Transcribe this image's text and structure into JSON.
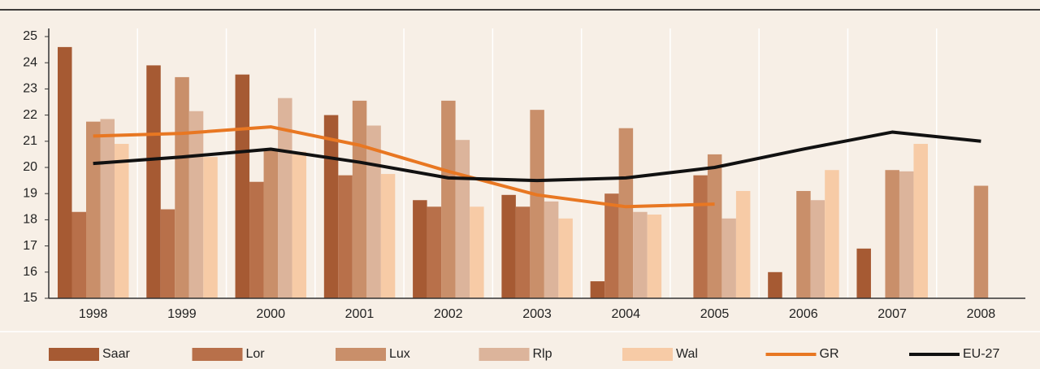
{
  "chart_data": {
    "type": "bar",
    "categories": [
      "1998",
      "1999",
      "2000",
      "2001",
      "2002",
      "2003",
      "2004",
      "2005",
      "2006",
      "2007",
      "2008"
    ],
    "ylim": [
      15,
      25
    ],
    "yticks": [
      15,
      16,
      17,
      18,
      19,
      20,
      21,
      22,
      23,
      24,
      25
    ],
    "series": [
      {
        "name": "Saar",
        "type": "bar",
        "color": "#a65a33",
        "values": [
          24.6,
          23.9,
          23.55,
          22.0,
          18.75,
          18.95,
          15.65,
          null,
          16.0,
          16.9,
          null
        ]
      },
      {
        "name": "Lor",
        "type": "bar",
        "color": "#b8704a",
        "values": [
          18.3,
          18.4,
          19.45,
          19.7,
          18.5,
          18.5,
          19.0,
          19.7,
          null,
          null,
          null
        ]
      },
      {
        "name": "Lux",
        "type": "bar",
        "color": "#c98f6a",
        "values": [
          21.75,
          23.45,
          20.7,
          22.55,
          22.55,
          22.2,
          21.5,
          20.5,
          19.1,
          19.9,
          19.3
        ]
      },
      {
        "name": "Rlp",
        "type": "bar",
        "color": "#dcb49b",
        "values": [
          21.85,
          22.15,
          22.65,
          21.6,
          21.05,
          18.7,
          18.3,
          18.05,
          18.75,
          19.85,
          null
        ]
      },
      {
        "name": "Wal",
        "type": "bar",
        "color": "#f7cba6",
        "values": [
          20.9,
          20.4,
          20.6,
          19.75,
          18.5,
          18.05,
          18.2,
          19.1,
          19.9,
          20.9,
          null
        ]
      },
      {
        "name": "GR",
        "type": "line",
        "color": "#e87722",
        "values": [
          21.2,
          21.3,
          21.55,
          20.85,
          19.85,
          18.95,
          18.5,
          18.6,
          null,
          null,
          null
        ]
      },
      {
        "name": "EU-27",
        "type": "line",
        "color": "#111111",
        "values": [
          20.15,
          20.4,
          20.7,
          20.2,
          19.6,
          19.5,
          19.6,
          20.0,
          20.7,
          21.35,
          21.0
        ]
      }
    ]
  }
}
